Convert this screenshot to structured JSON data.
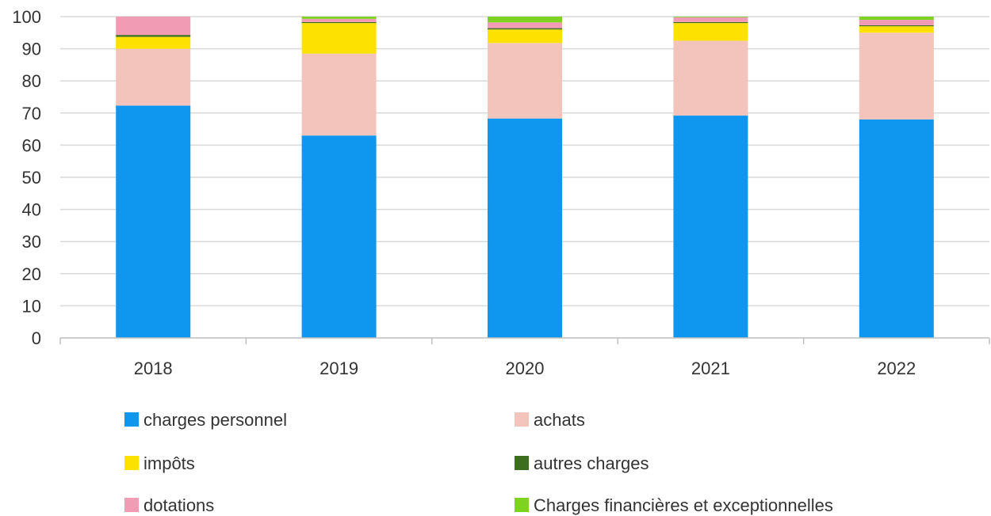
{
  "chart_data": {
    "type": "bar",
    "stacked": true,
    "categories": [
      "2018",
      "2019",
      "2020",
      "2021",
      "2022"
    ],
    "ylim": [
      0,
      100
    ],
    "yticks": [
      0,
      10,
      20,
      30,
      40,
      50,
      60,
      70,
      80,
      90,
      100
    ],
    "grid": true,
    "legend_position": "bottom",
    "series": [
      {
        "name": "charges personnel",
        "color": "#0f97f0",
        "values": [
          72.3,
          63.0,
          68.3,
          69.2,
          68.0
        ]
      },
      {
        "name": "achats",
        "color": "#f2c4bb",
        "values": [
          17.7,
          25.5,
          23.5,
          23.3,
          27.0
        ]
      },
      {
        "name": "impôts",
        "color": "#fde100",
        "values": [
          3.7,
          9.5,
          4.2,
          5.5,
          2.0
        ]
      },
      {
        "name": "autres charges",
        "color": "#3c6e1e",
        "values": [
          0.6,
          0.3,
          0.4,
          0.3,
          0.3
        ]
      },
      {
        "name": "dotations",
        "color": "#f29bb4",
        "values": [
          5.7,
          1.0,
          1.8,
          1.5,
          1.7
        ]
      },
      {
        "name": "Charges financières et exceptionnelles",
        "color": "#7ed321",
        "values": [
          0.0,
          0.7,
          1.8,
          0.2,
          1.0
        ]
      }
    ]
  }
}
